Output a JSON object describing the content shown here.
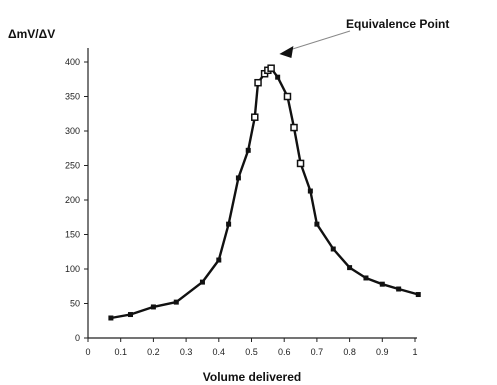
{
  "chart_data": {
    "type": "line",
    "title": "",
    "xlabel": "Volume delivered",
    "ylabel": "ΔmV/ΔV",
    "xlim": [
      0,
      1.02
    ],
    "ylim": [
      0,
      410
    ],
    "x_ticks": [
      0,
      0.1,
      0.2,
      0.3,
      0.4,
      0.5,
      0.6,
      0.7,
      0.8,
      0.9,
      1
    ],
    "x_tick_labels": [
      "0",
      "0.1",
      "0.2",
      "0.3",
      "0.4",
      "0.5",
      "0.6",
      "0.7",
      "0.8",
      "0.9",
      "1"
    ],
    "y_ticks": [
      0,
      50,
      100,
      150,
      200,
      250,
      300,
      350,
      400
    ],
    "y_tick_labels": [
      "0",
      "50",
      "100",
      "150",
      "200",
      "250",
      "300",
      "350",
      "400"
    ],
    "grid": false,
    "legend": "none",
    "series": [
      {
        "x": [
          0.07,
          0.13,
          0.2,
          0.27,
          0.35,
          0.4,
          0.43,
          0.46,
          0.49,
          0.51,
          0.52,
          0.54,
          0.55,
          0.56,
          0.58,
          0.61,
          0.63,
          0.65,
          0.68,
          0.7,
          0.75,
          0.8,
          0.85,
          0.9,
          0.95,
          1.01
        ],
        "y": [
          29,
          34,
          45,
          52,
          81,
          113,
          165,
          232,
          272,
          320,
          370,
          383,
          388,
          391,
          378,
          350,
          305,
          253,
          213,
          165,
          129,
          102,
          87,
          78,
          71,
          63
        ],
        "open_marker_x": [
          0.51,
          0.52,
          0.54,
          0.55,
          0.56,
          0.61,
          0.63,
          0.65
        ]
      }
    ],
    "annotations": [
      {
        "text": "Equivalence Point",
        "x": 0.57,
        "y": 400
      }
    ]
  },
  "colors": {
    "line": "#111111",
    "marker_fill": "#111111",
    "open_marker_fill": "#ffffff",
    "axis": "#222222",
    "annotation_arrow": "#888888"
  }
}
